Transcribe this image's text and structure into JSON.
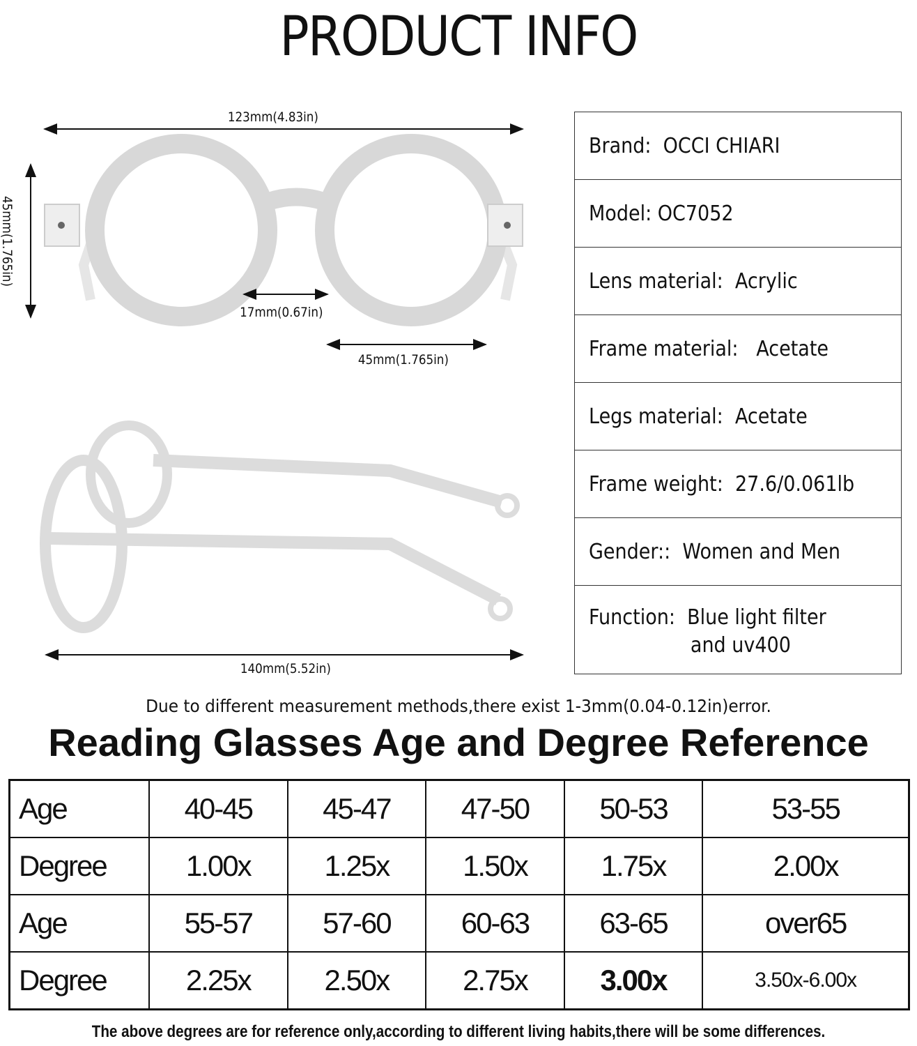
{
  "title": "PRODUCT INFO",
  "dimensions": {
    "total_width": "123mm(4.83in)",
    "lens_height": "45mm(1.765in)",
    "bridge": "17mm(0.67in)",
    "lens_width": "45mm(1.765in)",
    "temple_length": "140mm(5.52in)"
  },
  "specs": [
    {
      "label": "Brand:  OCCI CHIARI"
    },
    {
      "label": "Model: OC7052"
    },
    {
      "label": "Lens material:  Acrylic"
    },
    {
      "label": "Frame material:   Acetate"
    },
    {
      "label": "Legs material:  Acetate"
    },
    {
      "label": "Frame weight:  27.6/0.061lb"
    },
    {
      "label": "Gender::  Women and Men"
    },
    {
      "label": "Function:  Blue light filter\n                 and uv400"
    }
  ],
  "measurement_note": "Due to different measurement methods,there exist 1-3mm(0.04-0.12in)error.",
  "reference": {
    "heading": "Reading Glasses Age and Degree Reference",
    "rows": [
      {
        "label": "Age",
        "values": [
          "40-45",
          "45-47",
          "47-50",
          "50-53",
          "53-55"
        ]
      },
      {
        "label": "Degree",
        "values": [
          "1.00x",
          "1.25x",
          "1.50x",
          "1.75x",
          "2.00x"
        ]
      },
      {
        "label": "Age",
        "values": [
          "55-57",
          "57-60",
          "60-63",
          "63-65",
          "over65"
        ]
      },
      {
        "label": "Degree",
        "values": [
          "2.25x",
          "2.50x",
          "2.75x",
          "3.00x",
          "3.50x-6.00x"
        ]
      }
    ],
    "footnote": "The above degrees are for reference only,according to different living habits,there will be some differences."
  }
}
